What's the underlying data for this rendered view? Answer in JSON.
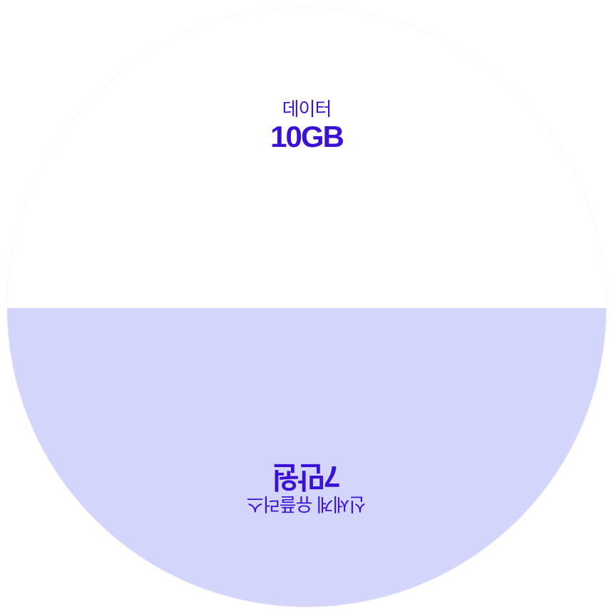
{
  "top_segment": {
    "label": "데이터",
    "value": "10GB"
  },
  "bottom_segment": {
    "label": "신세계 유플러스",
    "value": "7만원"
  },
  "colors": {
    "accent_text": "#3b12d3",
    "bottom_fill": "#d4d5fb",
    "top_fill": "#ffffff"
  }
}
